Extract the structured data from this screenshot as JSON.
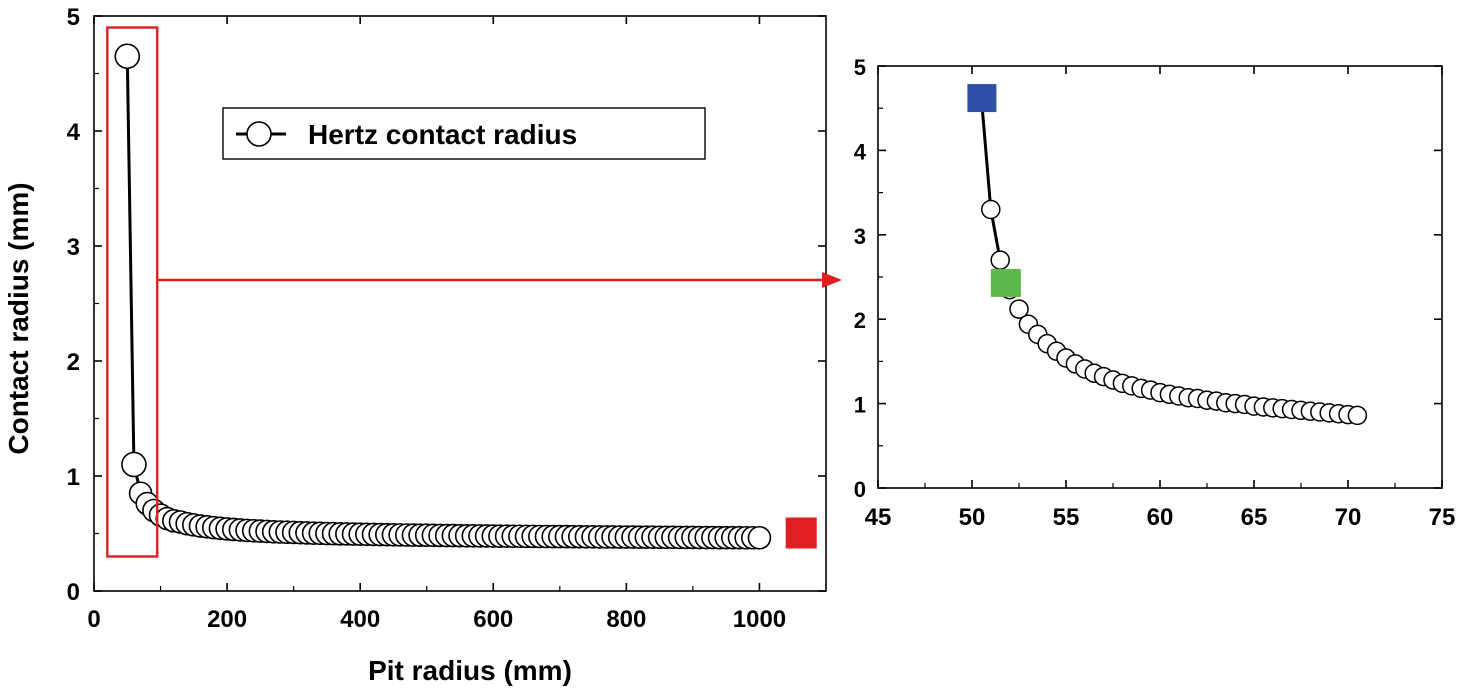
{
  "chart_data": [
    {
      "type": "line",
      "xlabel": "Pit radius (mm)",
      "ylabel": "Contact radius (mm)",
      "xlim": [
        0,
        1100
      ],
      "ylim": [
        0,
        5
      ],
      "x_ticks": [
        0,
        200,
        400,
        600,
        800,
        1000
      ],
      "y_ticks": [
        0,
        1,
        2,
        3,
        4,
        5
      ],
      "legend": {
        "label": "Hertz contact radius",
        "placement": "top-center"
      },
      "series": [
        {
          "name": "Hertz contact radius",
          "marker": "open-circle",
          "x": [
            50,
            60,
            70,
            80,
            90,
            100,
            110,
            120,
            130,
            140,
            150,
            160,
            170,
            180,
            190,
            200,
            210,
            220,
            230,
            240,
            250,
            260,
            270,
            280,
            290,
            300,
            310,
            320,
            330,
            340,
            350,
            360,
            370,
            380,
            390,
            400,
            410,
            420,
            430,
            440,
            450,
            460,
            470,
            480,
            490,
            500,
            510,
            520,
            530,
            540,
            550,
            560,
            570,
            580,
            590,
            600,
            610,
            620,
            630,
            640,
            650,
            660,
            670,
            680,
            690,
            700,
            710,
            720,
            730,
            740,
            750,
            760,
            770,
            780,
            790,
            800,
            810,
            820,
            830,
            840,
            850,
            860,
            870,
            880,
            890,
            900,
            910,
            920,
            930,
            940,
            950,
            960,
            970,
            980,
            990,
            1000
          ],
          "y": [
            4.65,
            1.1,
            0.85,
            0.76,
            0.7,
            0.66,
            0.63,
            0.61,
            0.6,
            0.585,
            0.575,
            0.565,
            0.558,
            0.551,
            0.545,
            0.54,
            0.535,
            0.531,
            0.527,
            0.524,
            0.521,
            0.518,
            0.515,
            0.513,
            0.511,
            0.509,
            0.507,
            0.505,
            0.503,
            0.502,
            0.5,
            0.499,
            0.497,
            0.496,
            0.495,
            0.494,
            0.493,
            0.492,
            0.491,
            0.49,
            0.489,
            0.488,
            0.487,
            0.486,
            0.485,
            0.485,
            0.484,
            0.483,
            0.482,
            0.482,
            0.481,
            0.48,
            0.48,
            0.479,
            0.479,
            0.478,
            0.477,
            0.477,
            0.476,
            0.476,
            0.475,
            0.475,
            0.474,
            0.474,
            0.473,
            0.473,
            0.473,
            0.472,
            0.472,
            0.471,
            0.471,
            0.47,
            0.47,
            0.47,
            0.469,
            0.469,
            0.469,
            0.468,
            0.468,
            0.468,
            0.467,
            0.467,
            0.467,
            0.466,
            0.466,
            0.466,
            0.465,
            0.465,
            0.465,
            0.464,
            0.464,
            0.464,
            0.464,
            0.463,
            0.463,
            0.463
          ]
        }
      ],
      "annotations": [
        {
          "type": "highlight-box",
          "x_range": [
            20,
            95
          ],
          "y_range": [
            0.3,
            4.9
          ],
          "color": "#e02020"
        },
        {
          "type": "square-marker",
          "x": 1062,
          "y": 0.5,
          "color": "#e02020"
        }
      ],
      "grid": false
    },
    {
      "type": "scatter",
      "xlim": [
        45,
        75
      ],
      "ylim": [
        0,
        5
      ],
      "x_ticks": [
        45,
        50,
        55,
        60,
        65,
        70,
        75
      ],
      "y_ticks": [
        0,
        1,
        2,
        3,
        4,
        5
      ],
      "series": [
        {
          "marker": "open-circle",
          "x": [
            50.5,
            51,
            51.5,
            52,
            52.5,
            53,
            53.5,
            54,
            54.5,
            55,
            55.5,
            56,
            56.5,
            57,
            57.5,
            58,
            58.5,
            59,
            59.5,
            60,
            60.5,
            61,
            61.5,
            62,
            62.5,
            63,
            63.5,
            64,
            64.5,
            65,
            65.5,
            66,
            66.5,
            67,
            67.5,
            68,
            68.5,
            69,
            69.5,
            70,
            70.5
          ],
          "y": [
            4.62,
            3.3,
            2.7,
            2.35,
            2.12,
            1.94,
            1.82,
            1.71,
            1.62,
            1.54,
            1.47,
            1.41,
            1.36,
            1.32,
            1.28,
            1.24,
            1.21,
            1.18,
            1.16,
            1.13,
            1.11,
            1.09,
            1.07,
            1.06,
            1.04,
            1.03,
            1.01,
            1.0,
            0.99,
            0.97,
            0.96,
            0.95,
            0.94,
            0.93,
            0.92,
            0.91,
            0.9,
            0.89,
            0.88,
            0.87,
            0.86
          ]
        }
      ],
      "annotations": [
        {
          "type": "square-marker",
          "x": 50.5,
          "y": 4.62,
          "color": "#3050a8"
        },
        {
          "type": "square-marker",
          "x": 51.8,
          "y": 2.43,
          "color": "#5cb84a"
        }
      ],
      "grid": false
    }
  ],
  "colors": {
    "highlight": "#e02020",
    "blue_marker": "#3050a8",
    "green_marker": "#5cb84a",
    "axis": "#000000"
  }
}
